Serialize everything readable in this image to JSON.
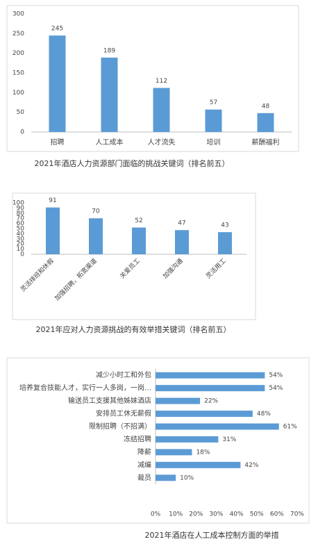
{
  "chart_data": [
    {
      "type": "bar",
      "title": "2021年酒店人力资源部门面临的挑战关键词（排名前五）",
      "categories": [
        "招聘",
        "人工成本",
        "人才流失",
        "培训",
        "薪酬福利"
      ],
      "values": [
        245,
        189,
        112,
        57,
        48
      ],
      "color": "#5b9bd5",
      "ylim": [
        0,
        300
      ],
      "yticks": [
        0,
        50,
        100,
        150,
        200,
        250,
        300
      ]
    },
    {
      "type": "bar",
      "title": "2021年应对人力资源挑战的有效举措关键词（排名前五）",
      "categories": [
        "灵活排班和休假",
        "加强招聘，拓宽渠道",
        "关爱员工",
        "加强沟通",
        "灵活用工"
      ],
      "values": [
        91,
        70,
        52,
        47,
        43
      ],
      "color": "#5b9bd5",
      "ylim": [
        0,
        100
      ],
      "yticks": [
        0,
        10,
        20,
        30,
        40,
        50,
        60,
        70,
        80,
        90,
        100
      ]
    },
    {
      "type": "hbar",
      "title": "2021年酒店在人工成本控制方面的举措",
      "categories": [
        "减少小时工和外包",
        "培养复合技能人才，实行一人多岗，一岗…",
        "输送员工支援其他姊妹酒店",
        "安排员工休无薪假",
        "限制招聘（不招满）",
        "冻结招聘",
        "降薪",
        "减编",
        "裁员"
      ],
      "values": [
        54,
        54,
        22,
        48,
        61,
        31,
        18,
        42,
        10
      ],
      "value_labels": [
        "54%",
        "54%",
        "22%",
        "48%",
        "61%",
        "31%",
        "18%",
        "42%",
        "10%"
      ],
      "color": "#5b9bd5",
      "xlim": [
        0,
        70
      ],
      "xticks": [
        {
          "value": 0,
          "label": "0%"
        },
        {
          "value": 10,
          "label": "10%"
        },
        {
          "value": 20,
          "label": "20%"
        },
        {
          "value": 30,
          "label": "30%"
        },
        {
          "value": 40,
          "label": "40%"
        },
        {
          "value": 50,
          "label": "50%"
        },
        {
          "value": 60,
          "label": "60%"
        },
        {
          "value": 70,
          "label": "70%"
        }
      ]
    }
  ]
}
